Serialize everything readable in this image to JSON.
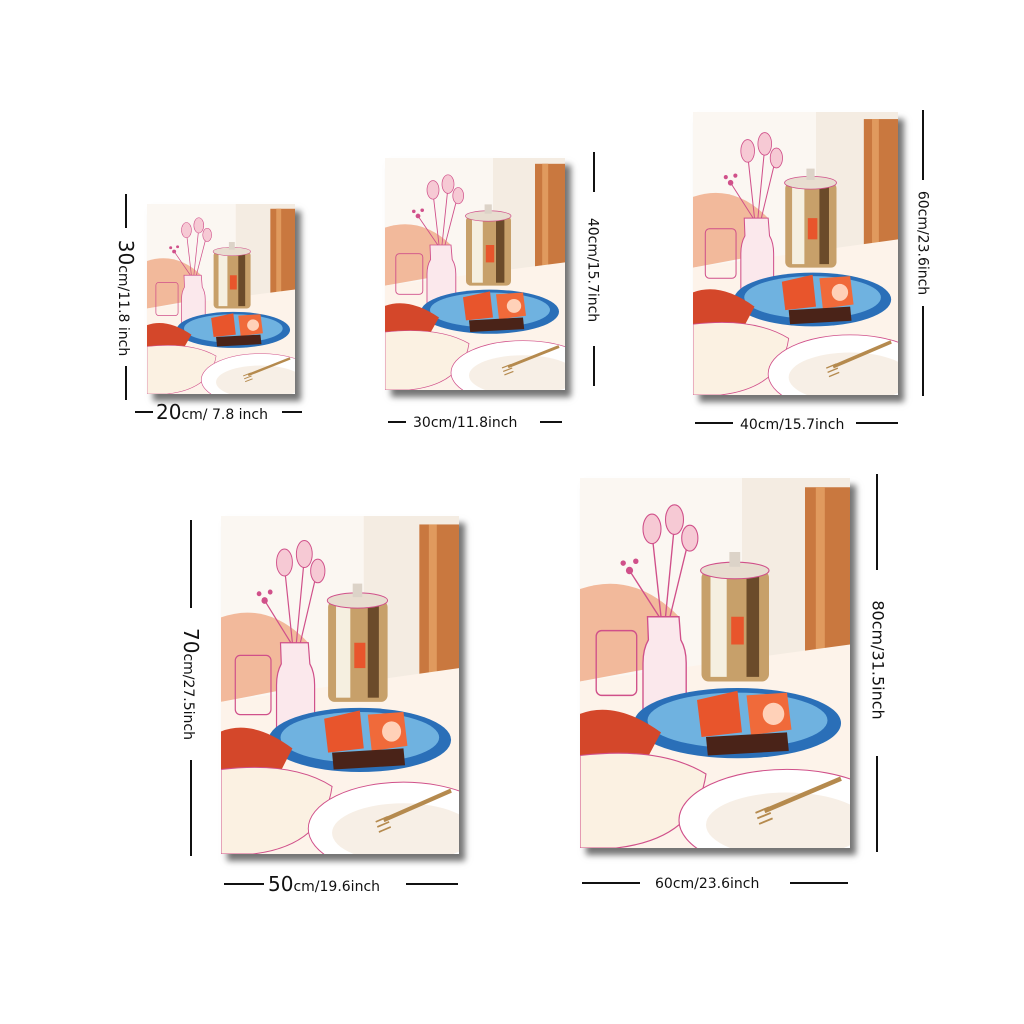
{
  "sizes": [
    {
      "id": "s1",
      "width_label_big": "20",
      "width_label_small": "cm/ 7.8 inch",
      "height_label_big": "30",
      "height_label_small": "cm/11.8 inch"
    },
    {
      "id": "s2",
      "width_label_big": "",
      "width_label_small": "30cm/11.8inch",
      "height_label_big": "",
      "height_label_small": "40cm/15.7inch"
    },
    {
      "id": "s3",
      "width_label_big": "",
      "width_label_small": "40cm/15.7inch",
      "height_label_big": "",
      "height_label_small": "60cm/23.6inch"
    },
    {
      "id": "s4",
      "width_label_big": "50",
      "width_label_small": "cm/19.6inch",
      "height_label_big": "70",
      "height_label_small": "cm/27.5inch"
    },
    {
      "id": "s5",
      "width_label_big": "",
      "width_label_small": "60cm/23.6inch",
      "height_label_big": "",
      "height_label_small": "80cm/31.5inch"
    }
  ],
  "colors": {
    "line": "#111111",
    "peach": "#f2b99b",
    "orange": "#e8552c",
    "blue": "#2a6fb8",
    "wood": "#c9783f",
    "pink": "#d0508a"
  }
}
